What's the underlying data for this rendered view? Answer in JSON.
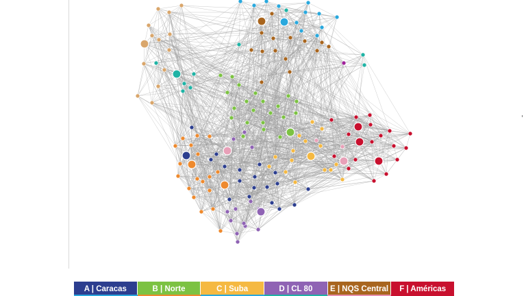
{
  "legend": {
    "items": [
      {
        "label": "A | Caracas",
        "color": "#2c3e8f"
      },
      {
        "label": "B | Norte",
        "color": "#7cc242"
      },
      {
        "label": "C | Suba",
        "color": "#f5b942"
      },
      {
        "label": "D | CL 80",
        "color": "#8f63b4"
      },
      {
        "label": "E | NQS Central",
        "color": "#a8651e"
      },
      {
        "label": "F | Américas",
        "color": "#c8102e"
      }
    ],
    "strip_colors": [
      "#29a8dd",
      "#ee8a2e",
      "#29a8dd",
      "#1fb3a5",
      "#e88fb0",
      "#c8102e"
    ]
  },
  "groups": {
    "A": "#2c3e8f",
    "B": "#7cc242",
    "C": "#f5b942",
    "D": "#8f63b4",
    "E": "#a8651e",
    "F": "#c8102e",
    "G": "#ee8a2e",
    "H": "#29a8dd",
    "J": "#1fb3a5",
    "K": "#e8a0b8",
    "L": "#d9a66b",
    "M": "#a0229a"
  },
  "edge_color": "#9a9a9a"
}
